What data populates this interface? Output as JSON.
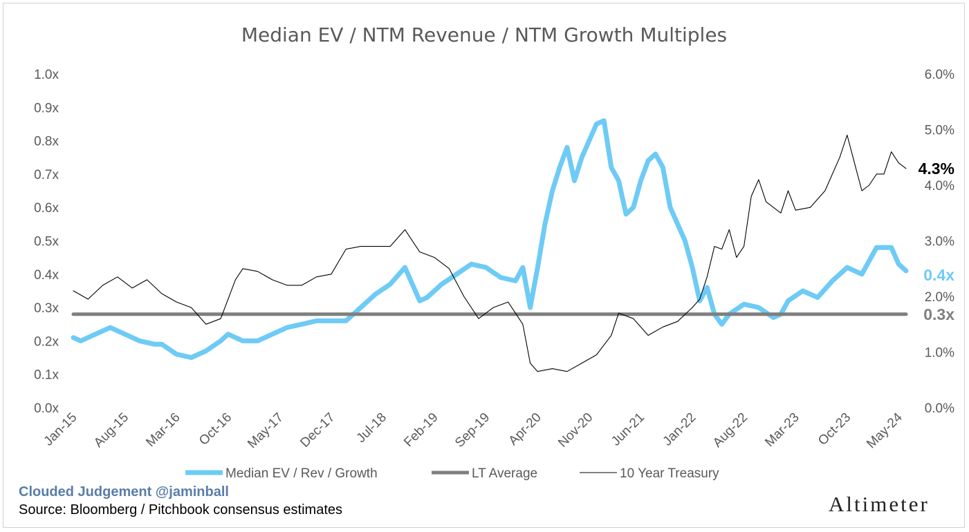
{
  "footer": {
    "brand": "Clouded Judgement @jaminball",
    "source": "Source: Bloomberg / Pitchbook consensus estimates",
    "logo": "Altimeter"
  },
  "colors": {
    "median": "#6ecbf5",
    "lt_average": "#7f7f7f",
    "treasury": "#000000",
    "text": "#595959"
  },
  "chart_data": {
    "type": "line",
    "title": "Median EV / NTM Revenue / NTM Growth Multiples",
    "x_tick_labels": [
      "Jan-15",
      "Aug-15",
      "Mar-16",
      "Oct-16",
      "May-17",
      "Dec-17",
      "Jul-18",
      "Feb-19",
      "Sep-19",
      "Apr-20",
      "Nov-20",
      "Jun-21",
      "Jan-22",
      "Aug-22",
      "Mar-23",
      "Oct-23",
      "May-24"
    ],
    "x_range": [
      "2015-01",
      "2024-06"
    ],
    "y_left": {
      "ticks": [
        "0.0x",
        "0.1x",
        "0.2x",
        "0.3x",
        "0.4x",
        "0.5x",
        "0.6x",
        "0.7x",
        "0.8x",
        "0.9x",
        "1.0x"
      ],
      "range": [
        0,
        1.0
      ]
    },
    "y_right": {
      "ticks": [
        "0.0%",
        "1.0%",
        "2.0%",
        "3.0%",
        "4.0%",
        "5.0%",
        "6.0%"
      ],
      "range": [
        0,
        6.0
      ]
    },
    "legend_position": "bottom",
    "series": [
      {
        "name": "Median EV / Rev / Growth",
        "axis": "left",
        "x": [
          "2015-01",
          "2015-02",
          "2015-04",
          "2015-06",
          "2015-08",
          "2015-10",
          "2015-12",
          "2016-01",
          "2016-03",
          "2016-05",
          "2016-07",
          "2016-09",
          "2016-10",
          "2016-12",
          "2017-02",
          "2017-04",
          "2017-06",
          "2017-08",
          "2017-10",
          "2017-12",
          "2018-02",
          "2018-04",
          "2018-06",
          "2018-08",
          "2018-10",
          "2018-12",
          "2019-01",
          "2019-03",
          "2019-05",
          "2019-07",
          "2019-09",
          "2019-11",
          "2020-01",
          "2020-02",
          "2020-03",
          "2020-04",
          "2020-05",
          "2020-06",
          "2020-07",
          "2020-08",
          "2020-09",
          "2020-10",
          "2020-11",
          "2020-12",
          "2021-01",
          "2021-02",
          "2021-03",
          "2021-04",
          "2021-05",
          "2021-06",
          "2021-07",
          "2021-08",
          "2021-09",
          "2021-10",
          "2021-11",
          "2021-12",
          "2022-01",
          "2022-02",
          "2022-03",
          "2022-04",
          "2022-05",
          "2022-06",
          "2022-08",
          "2022-10",
          "2022-12",
          "2023-01",
          "2023-02",
          "2023-04",
          "2023-06",
          "2023-08",
          "2023-10",
          "2023-12",
          "2024-01",
          "2024-02",
          "2024-04",
          "2024-05",
          "2024-06"
        ],
        "y": [
          0.21,
          0.2,
          0.22,
          0.24,
          0.22,
          0.2,
          0.19,
          0.19,
          0.16,
          0.15,
          0.17,
          0.2,
          0.22,
          0.2,
          0.2,
          0.22,
          0.24,
          0.25,
          0.26,
          0.26,
          0.26,
          0.3,
          0.34,
          0.37,
          0.42,
          0.32,
          0.33,
          0.37,
          0.4,
          0.43,
          0.42,
          0.39,
          0.38,
          0.42,
          0.3,
          0.42,
          0.55,
          0.65,
          0.72,
          0.78,
          0.68,
          0.75,
          0.8,
          0.85,
          0.86,
          0.72,
          0.68,
          0.58,
          0.6,
          0.68,
          0.74,
          0.76,
          0.72,
          0.6,
          0.55,
          0.5,
          0.42,
          0.32,
          0.36,
          0.28,
          0.25,
          0.28,
          0.31,
          0.3,
          0.27,
          0.28,
          0.32,
          0.35,
          0.33,
          0.38,
          0.42,
          0.4,
          0.44,
          0.48,
          0.48,
          0.43,
          0.41
        ],
        "end_label": "0.4x"
      },
      {
        "name": "LT Average",
        "axis": "left",
        "x": [
          "2015-01",
          "2024-06"
        ],
        "y": [
          0.28,
          0.28
        ],
        "end_label": "0.3x"
      },
      {
        "name": "10 Year Treasury",
        "axis": "right",
        "x": [
          "2015-01",
          "2015-03",
          "2015-05",
          "2015-07",
          "2015-09",
          "2015-11",
          "2016-01",
          "2016-03",
          "2016-05",
          "2016-07",
          "2016-09",
          "2016-11",
          "2016-12",
          "2017-02",
          "2017-04",
          "2017-06",
          "2017-08",
          "2017-10",
          "2017-12",
          "2018-02",
          "2018-04",
          "2018-06",
          "2018-08",
          "2018-10",
          "2018-12",
          "2019-02",
          "2019-04",
          "2019-06",
          "2019-08",
          "2019-10",
          "2019-12",
          "2020-02",
          "2020-03",
          "2020-04",
          "2020-06",
          "2020-08",
          "2020-10",
          "2020-12",
          "2021-02",
          "2021-03",
          "2021-05",
          "2021-07",
          "2021-09",
          "2021-11",
          "2022-01",
          "2022-02",
          "2022-03",
          "2022-04",
          "2022-05",
          "2022-06",
          "2022-07",
          "2022-08",
          "2022-09",
          "2022-10",
          "2022-11",
          "2022-12",
          "2023-01",
          "2023-02",
          "2023-03",
          "2023-05",
          "2023-07",
          "2023-08",
          "2023-09",
          "2023-10",
          "2023-11",
          "2023-12",
          "2024-01",
          "2024-02",
          "2024-03",
          "2024-04",
          "2024-05",
          "2024-06"
        ],
        "y": [
          2.1,
          1.95,
          2.2,
          2.35,
          2.15,
          2.3,
          2.05,
          1.9,
          1.8,
          1.5,
          1.6,
          2.3,
          2.5,
          2.45,
          2.3,
          2.2,
          2.2,
          2.35,
          2.4,
          2.85,
          2.9,
          2.9,
          2.9,
          3.2,
          2.8,
          2.7,
          2.5,
          2.0,
          1.6,
          1.8,
          1.9,
          1.5,
          0.8,
          0.65,
          0.7,
          0.65,
          0.8,
          0.95,
          1.3,
          1.7,
          1.6,
          1.3,
          1.45,
          1.55,
          1.8,
          1.95,
          2.35,
          2.9,
          2.85,
          3.2,
          2.7,
          2.9,
          3.8,
          4.1,
          3.7,
          3.6,
          3.5,
          3.9,
          3.55,
          3.6,
          3.9,
          4.2,
          4.5,
          4.9,
          4.4,
          3.9,
          4.0,
          4.2,
          4.2,
          4.6,
          4.4,
          4.3
        ],
        "end_label": "4.3%"
      }
    ]
  }
}
